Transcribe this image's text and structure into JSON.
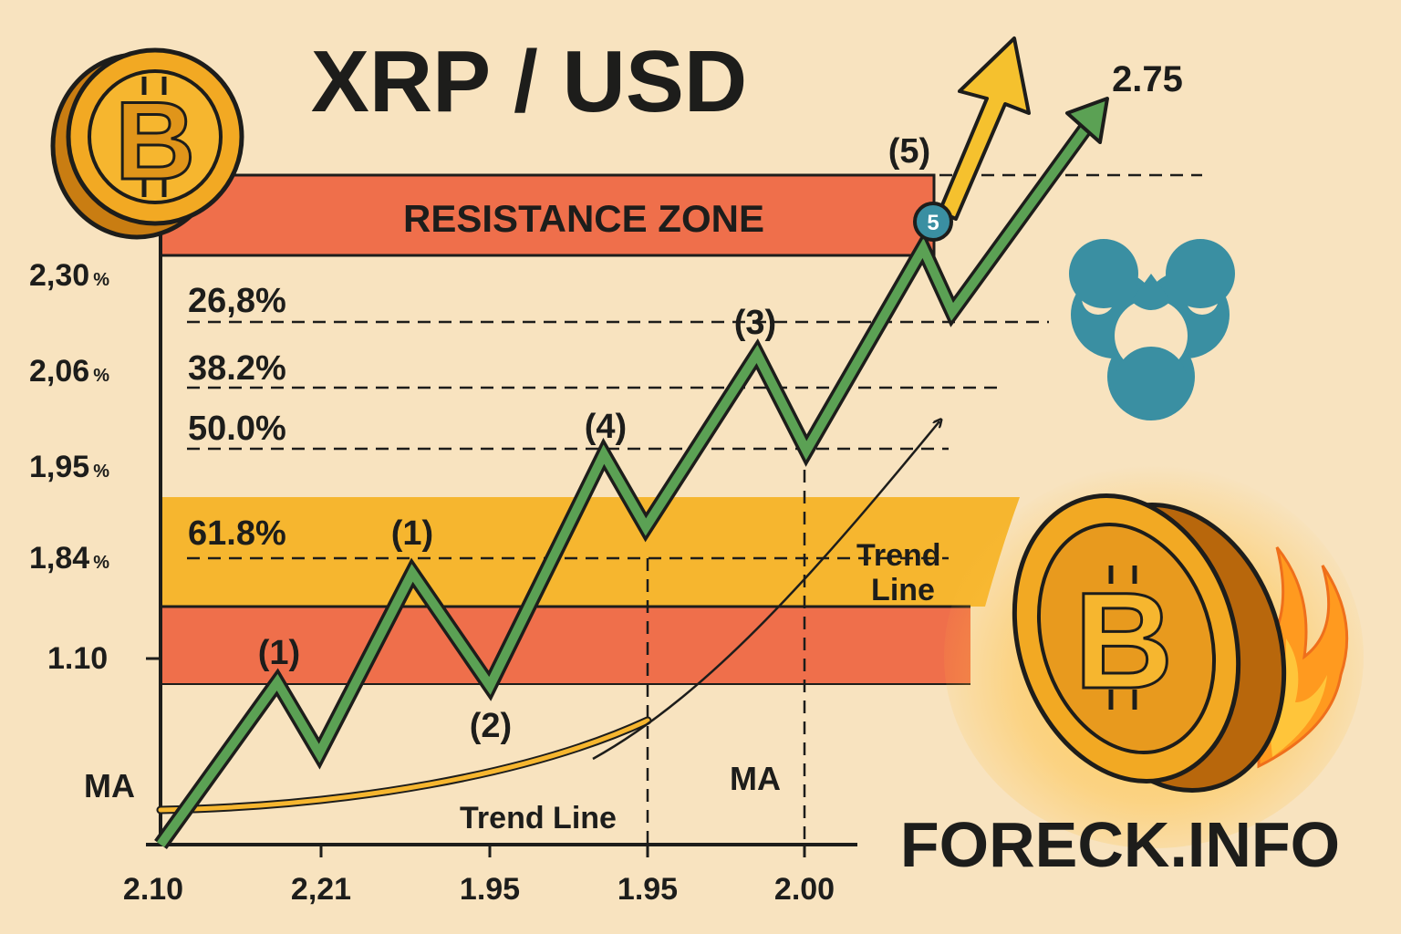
{
  "chart_data": {
    "type": "line",
    "title": "XRP / USD",
    "resistance_label": "RESISTANCE ZONE",
    "y_tick_labels": [
      "2,30",
      "2,06",
      "1,95",
      "1,84",
      "1.10"
    ],
    "y_tick_suffix": "%",
    "x_tick_labels": [
      "2.10",
      "2,21",
      "1.95",
      "1.95",
      "2.00"
    ],
    "fib_levels": [
      "26,8%",
      "38.2%",
      "50.0%",
      "61.8%"
    ],
    "target_label": "2.75",
    "wave_labels": [
      "(1)",
      "(1)",
      "(2)",
      "(4)",
      "(3)",
      "(5)"
    ],
    "wave_marker": "5",
    "ma_labels": [
      "MA",
      "MA"
    ],
    "trend_line_labels": [
      "Trend Line",
      "Trend\nLine"
    ]
  },
  "brand": {
    "watermark": "FORECK.INFO"
  },
  "colors": {
    "background": "#f8e3bf",
    "resistance": "#ef6f4b",
    "support_orange": "#f6b62f",
    "price_line": "#5ba154",
    "arrow_yellow": "#f5c12e",
    "ripple_blue": "#3a8fa2",
    "coin_gold": "#f2a923",
    "ink": "#1d1d1b"
  },
  "icons": [
    "bitcoin-coin-icon",
    "ripple-logo-icon",
    "flaming-bitcoin-coin-icon"
  ]
}
